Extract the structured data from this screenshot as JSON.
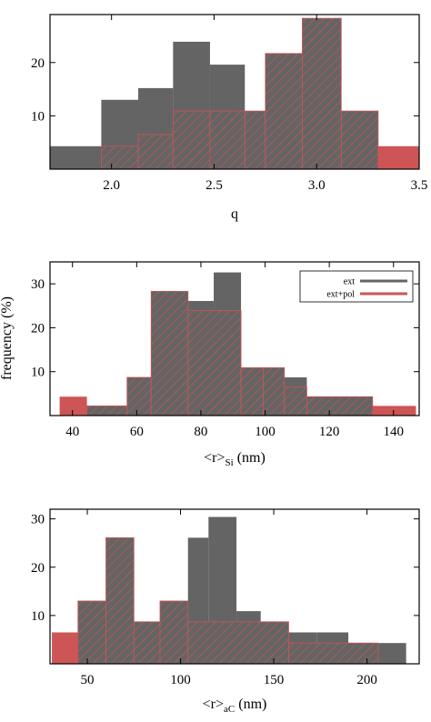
{
  "colors": {
    "ext": "#646464",
    "ext_pol": "#cd5555",
    "hatch": "#cd5555",
    "axis": "#000000"
  },
  "shared_ylabel": "frequency (%)",
  "chart_data": [
    {
      "type": "bar",
      "xlabel": "q",
      "xlim": [
        1.7,
        3.5
      ],
      "ylim": [
        0,
        29
      ],
      "xticks": [
        2.0,
        2.5,
        3.0,
        3.5
      ],
      "xtick_labels": [
        "2.0",
        "2.5",
        "3.0",
        "3.5"
      ],
      "yticks": [
        10,
        20
      ],
      "ytick_labels": [
        "10",
        "20"
      ],
      "grid": false,
      "series": [
        {
          "name": "ext",
          "bins": [
            {
              "x0": 1.7,
              "x1": 1.95,
              "value": 4.3
            },
            {
              "x0": 1.95,
              "x1": 2.13,
              "value": 13.0
            },
            {
              "x0": 2.13,
              "x1": 2.3,
              "value": 15.2
            },
            {
              "x0": 2.3,
              "x1": 2.48,
              "value": 23.9
            },
            {
              "x0": 2.48,
              "x1": 2.65,
              "value": 19.6
            },
            {
              "x0": 2.65,
              "x1": 2.75,
              "value": 10.9
            },
            {
              "x0": 2.75,
              "x1": 3.3,
              "value": 2.2
            }
          ]
        },
        {
          "name": "ext+pol",
          "bins": [
            {
              "x0": 1.95,
              "x1": 2.13,
              "value": 4.3
            },
            {
              "x0": 2.13,
              "x1": 2.3,
              "value": 6.5
            },
            {
              "x0": 2.3,
              "x1": 2.48,
              "value": 10.9
            },
            {
              "x0": 2.48,
              "x1": 2.65,
              "value": 10.9
            },
            {
              "x0": 2.65,
              "x1": 2.75,
              "value": 10.9
            },
            {
              "x0": 2.75,
              "x1": 2.93,
              "value": 21.7
            },
            {
              "x0": 2.93,
              "x1": 3.12,
              "value": 28.3
            },
            {
              "x0": 3.12,
              "x1": 3.3,
              "value": 10.9
            },
            {
              "x0": 3.3,
              "x1": 3.5,
              "value": 4.3
            }
          ]
        }
      ]
    },
    {
      "type": "bar",
      "xlabel": "<r>",
      "xlabel_sub": "Si",
      "xlabel_suffix": " (nm)",
      "xlim": [
        33,
        148
      ],
      "ylim": [
        0,
        35
      ],
      "xticks": [
        40,
        60,
        80,
        100,
        120,
        140
      ],
      "xtick_labels": [
        "40",
        "60",
        "80",
        "100",
        "120",
        "140"
      ],
      "yticks": [
        10,
        20,
        30
      ],
      "ytick_labels": [
        "10",
        "20",
        "30"
      ],
      "grid": false,
      "legend": {
        "position": "top-right",
        "entries": [
          "ext",
          "ext+pol"
        ]
      },
      "series": [
        {
          "name": "ext",
          "bins": [
            {
              "x0": 44.5,
              "x1": 64.5,
              "value": 2.2
            },
            {
              "x0": 64.5,
              "x1": 70,
              "value": 13.0
            },
            {
              "x0": 70,
              "x1": 76,
              "value": 19.6
            },
            {
              "x0": 76,
              "x1": 84,
              "value": 26.1
            },
            {
              "x0": 84,
              "x1": 92.5,
              "value": 32.6
            },
            {
              "x0": 92.5,
              "x1": 99.5,
              "value": 10.9
            },
            {
              "x0": 99.5,
              "x1": 106,
              "value": 6.5
            },
            {
              "x0": 106,
              "x1": 113,
              "value": 8.7
            },
            {
              "x0": 113,
              "x1": 133.5,
              "value": 4.3
            }
          ]
        },
        {
          "name": "ext+pol",
          "bins": [
            {
              "x0": 36,
              "x1": 44.5,
              "value": 4.3
            },
            {
              "x0": 44.5,
              "x1": 57,
              "value": 2.2
            },
            {
              "x0": 57,
              "x1": 64.5,
              "value": 8.7
            },
            {
              "x0": 64.5,
              "x1": 76,
              "value": 28.3
            },
            {
              "x0": 76,
              "x1": 92.5,
              "value": 23.9
            },
            {
              "x0": 92.5,
              "x1": 99.5,
              "value": 10.9
            },
            {
              "x0": 99.5,
              "x1": 106,
              "value": 10.9
            },
            {
              "x0": 106,
              "x1": 113,
              "value": 6.5
            },
            {
              "x0": 113,
              "x1": 133.5,
              "value": 4.3
            },
            {
              "x0": 133.5,
              "x1": 147,
              "value": 2.2
            }
          ]
        }
      ]
    },
    {
      "type": "bar",
      "xlabel": "<r>",
      "xlabel_sub": "aC",
      "xlabel_suffix": " (nm)",
      "xlim": [
        30,
        228
      ],
      "ylim": [
        0,
        32
      ],
      "xticks": [
        50,
        100,
        150,
        200
      ],
      "xtick_labels": [
        "50",
        "100",
        "150",
        "200"
      ],
      "yticks": [
        10,
        20,
        30
      ],
      "ytick_labels": [
        "10",
        "20",
        "30"
      ],
      "grid": false,
      "series": [
        {
          "name": "ext",
          "bins": [
            {
              "x0": 56,
              "x1": 86,
              "value": 2.2
            },
            {
              "x0": 86,
              "x1": 104,
              "value": 4.3
            },
            {
              "x0": 104,
              "x1": 115,
              "value": 26.1
            },
            {
              "x0": 115,
              "x1": 130,
              "value": 30.4
            },
            {
              "x0": 130,
              "x1": 143,
              "value": 10.9
            },
            {
              "x0": 143,
              "x1": 158,
              "value": 8.7
            },
            {
              "x0": 158,
              "x1": 173,
              "value": 6.5
            },
            {
              "x0": 173,
              "x1": 190,
              "value": 6.5
            },
            {
              "x0": 190,
              "x1": 206,
              "value": 4.3
            },
            {
              "x0": 206,
              "x1": 221,
              "value": 4.3
            }
          ]
        },
        {
          "name": "ext+pol",
          "bins": [
            {
              "x0": 31,
              "x1": 45,
              "value": 6.5
            },
            {
              "x0": 45,
              "x1": 60,
              "value": 13.0
            },
            {
              "x0": 60,
              "x1": 75,
              "value": 26.1
            },
            {
              "x0": 75,
              "x1": 89,
              "value": 8.7
            },
            {
              "x0": 89,
              "x1": 104,
              "value": 13.0
            },
            {
              "x0": 104,
              "x1": 158,
              "value": 8.7
            },
            {
              "x0": 158,
              "x1": 206,
              "value": 4.3
            }
          ]
        }
      ]
    }
  ]
}
